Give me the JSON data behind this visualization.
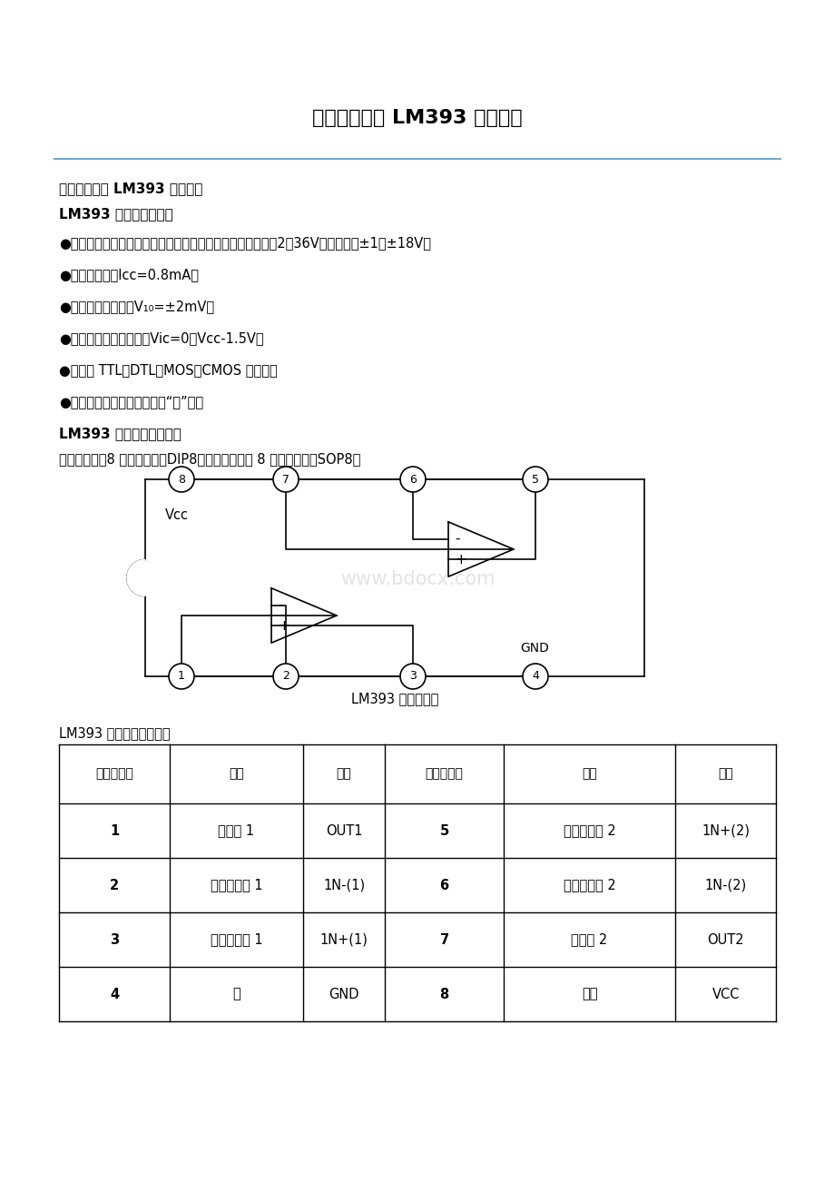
{
  "title": "双电压比较器 LM393 中文资料",
  "subtitle": "双电压比较器 LM393 中文资料",
  "section1": "LM393 主要特点如下：",
  "bullets": [
    "●工作电源电压范围宽，单电源、双电源均可工作，单电源：2～36V，双电源：±1～±18V；",
    "●消耗电流小，Icc=0.8mA；",
    "●输入失调电压小，V₁₀=±2mV；",
    "●共模输入电压范围宽，Vic=0～Vcc-1.5V；",
    "●输出与 TTL，DTL，MOS，CMOS 等兼容；",
    "●输出可以用开路集电极连接“或”门；"
  ],
  "section2": "LM393 引脚图及内部框图",
  "diagram_caption": "采用双列直排8 脚塑料封装（DIP8）和微形的双列 8 脚塑料封装（SOP8）",
  "diagram_label": "LM393 内部结构图",
  "table_title": "LM393 引脚功能排列表：",
  "table_headers": [
    "引出端序号",
    "功能",
    "符号",
    "引出端序号",
    "功能",
    "符号"
  ],
  "table_rows": [
    [
      "1",
      "输出端 1",
      "OUT1",
      "5",
      "正向输入端 2",
      "1N+(2)"
    ],
    [
      "2",
      "反向输入端 1",
      "1N-(1)",
      "6",
      "反向输入端 2",
      "1N-(2)"
    ],
    [
      "3",
      "正向输入端 1",
      "1N+(1)",
      "7",
      "输出端 2",
      "OUT2"
    ],
    [
      "4",
      "地",
      "GND",
      "8",
      "电源",
      "VCC"
    ]
  ],
  "bg_color": "#ffffff",
  "text_color": "#000000",
  "line_color": "#6fa8d4",
  "watermark": "www.bdocx.com",
  "vcc_label": "Vcc",
  "gnd_label": "GND",
  "bullet_y": [
    260,
    295,
    330,
    365,
    400,
    435
  ]
}
